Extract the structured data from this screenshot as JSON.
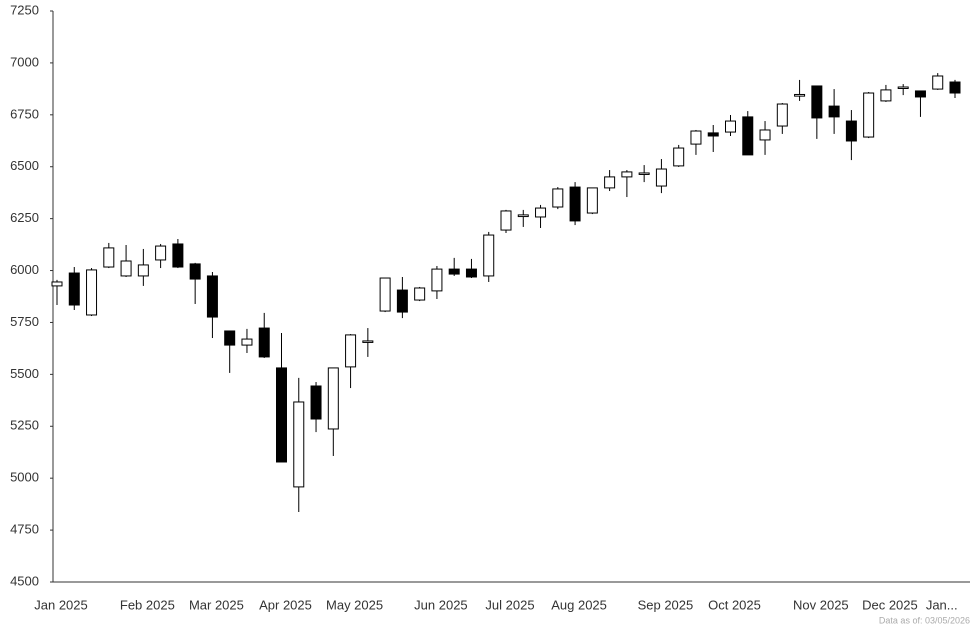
{
  "chart_data": {
    "type": "candlestick",
    "categories": [
      "Jan 2025",
      null,
      null,
      null,
      null,
      "Feb 2025",
      null,
      null,
      null,
      "Mar 2025",
      null,
      null,
      null,
      "Apr 2025",
      null,
      null,
      null,
      "May 2025",
      null,
      null,
      null,
      null,
      "Jun 2025",
      null,
      null,
      null,
      "Jul 2025",
      null,
      null,
      null,
      "Aug 2025",
      null,
      null,
      null,
      null,
      "Sep 2025",
      null,
      null,
      null,
      "Oct 2025",
      null,
      null,
      null,
      null,
      "Nov 2025",
      null,
      null,
      null,
      "Dec 2025",
      null,
      null,
      "Jan...",
      null
    ],
    "open": [
      5926,
      5988,
      5786,
      6017,
      5974,
      5974,
      6051,
      6128,
      6032,
      5974,
      5709,
      5641,
      5723,
      5531,
      4958,
      5444,
      5237,
      5536,
      5658,
      5805,
      5906,
      5858,
      5902,
      6007,
      6007,
      5974,
      6195,
      6260,
      6258,
      6306,
      6402,
      6277,
      6398,
      6451,
      6467,
      6407,
      6504,
      6609,
      6663,
      6667,
      6740,
      6629,
      6696,
      6840,
      6889,
      6792,
      6720,
      6643,
      6817,
      6880,
      6865,
      6874,
      6908
    ],
    "high": [
      5955,
      6017,
      6012,
      6133,
      6123,
      6104,
      6128,
      6152,
      6037,
      5993,
      5709,
      5719,
      5796,
      5699,
      5483,
      5463,
      5531,
      5694,
      5723,
      5964,
      5969,
      5921,
      6022,
      6061,
      6056,
      6186,
      6292,
      6292,
      6316,
      6402,
      6426,
      6398,
      6484,
      6484,
      6508,
      6537,
      6605,
      6677,
      6701,
      6749,
      6768,
      6720,
      6807,
      6918,
      6889,
      6874,
      6773,
      6860,
      6894,
      6898,
      6865,
      6951,
      6918
    ],
    "low": [
      5834,
      5810,
      5781,
      6012,
      5969,
      5926,
      6012,
      6012,
      5839,
      5675,
      5507,
      5603,
      5579,
      5078,
      4837,
      5222,
      5107,
      5434,
      5584,
      5800,
      5771,
      5853,
      5863,
      5974,
      5964,
      5945,
      6181,
      6210,
      6205,
      6296,
      6219,
      6272,
      6383,
      6354,
      6426,
      6373,
      6499,
      6557,
      6571,
      6648,
      6557,
      6557,
      6658,
      6817,
      6634,
      6658,
      6532,
      6638,
      6812,
      6845,
      6740,
      6870,
      6831
    ],
    "close": [
      5945,
      5834,
      6003,
      6109,
      6046,
      6027,
      6118,
      6017,
      5959,
      5776,
      5641,
      5670,
      5584,
      5078,
      5367,
      5285,
      5531,
      5690,
      5661,
      5964,
      5800,
      5916,
      6007,
      5983,
      5969,
      6171,
      6287,
      6268,
      6301,
      6393,
      6239,
      6398,
      6451,
      6475,
      6470,
      6489,
      6590,
      6672,
      6648,
      6720,
      6557,
      6677,
      6802,
      6848,
      6735,
      6740,
      6624,
      6855,
      6870,
      6884,
      6836,
      6937,
      6855
    ],
    "up_color": "#ffffff",
    "down_color": "#000000",
    "color": "#000000",
    "ylim": [
      4500,
      7250
    ],
    "yticks": [
      4500,
      4750,
      5000,
      5250,
      5500,
      5750,
      6000,
      6250,
      6500,
      6750,
      7000,
      7250
    ],
    "grid": false,
    "footnote": "Data as of: 03/05/2026"
  }
}
